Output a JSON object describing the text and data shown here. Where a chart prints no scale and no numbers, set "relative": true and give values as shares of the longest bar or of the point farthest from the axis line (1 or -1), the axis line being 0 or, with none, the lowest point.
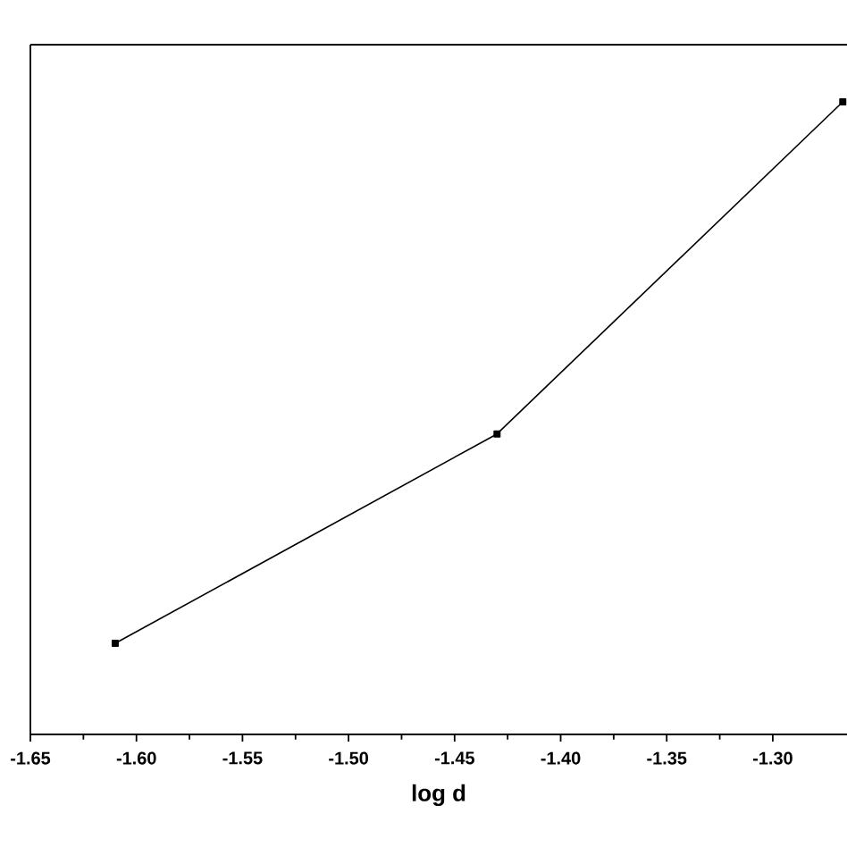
{
  "chart_data": {
    "type": "line",
    "xlabel": "log d",
    "relative": true,
    "marker": "square",
    "line_style": "solid",
    "x": [
      -1.61,
      -1.43,
      -1.267
    ],
    "series": [
      {
        "color": "#000000",
        "values": [
          0.144,
          0.475,
          1
        ]
      }
    ],
    "xlim": [
      -1.65,
      -1.265
    ],
    "xticks": [
      {
        "value": -1.65,
        "label": "-1.65"
      },
      {
        "value": -1.6,
        "label": "-1.60"
      },
      -1.55,
      {
        "value": -1.5,
        "label": "-1.50"
      },
      -1.45,
      {
        "value": -1.4,
        "label": "-1.40"
      },
      -1.35,
      {
        "value": -1.3,
        "label": "-1.30"
      }
    ],
    "tick_labels": "x"
  }
}
